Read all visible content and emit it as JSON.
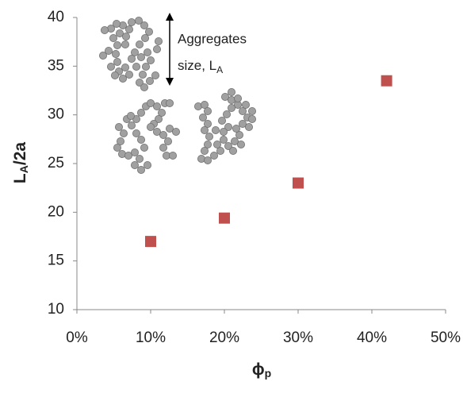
{
  "chart_data": {
    "type": "scatter",
    "x": [
      10,
      20,
      30,
      42
    ],
    "values": [
      17,
      19.4,
      23,
      33.5
    ],
    "color": "#c0504d",
    "xlim": [
      0,
      50
    ],
    "xticks": [
      {
        "value": 0,
        "label": "0%"
      },
      {
        "value": 10,
        "label": "10%"
      },
      {
        "value": 20,
        "label": "20%"
      },
      {
        "value": 30,
        "label": "30%"
      },
      {
        "value": 40,
        "label": "40%"
      },
      {
        "value": 50,
        "label": "50%"
      }
    ],
    "ylim": [
      10,
      40
    ],
    "yticks": [
      10,
      15,
      20,
      25,
      30,
      35,
      40
    ],
    "x_label": [
      "ϕ",
      "p"
    ],
    "y_label": [
      "L",
      "A",
      "/2a"
    ],
    "annotation": [
      "Aggregates",
      "size, L",
      "A"
    ],
    "grid": false
  }
}
